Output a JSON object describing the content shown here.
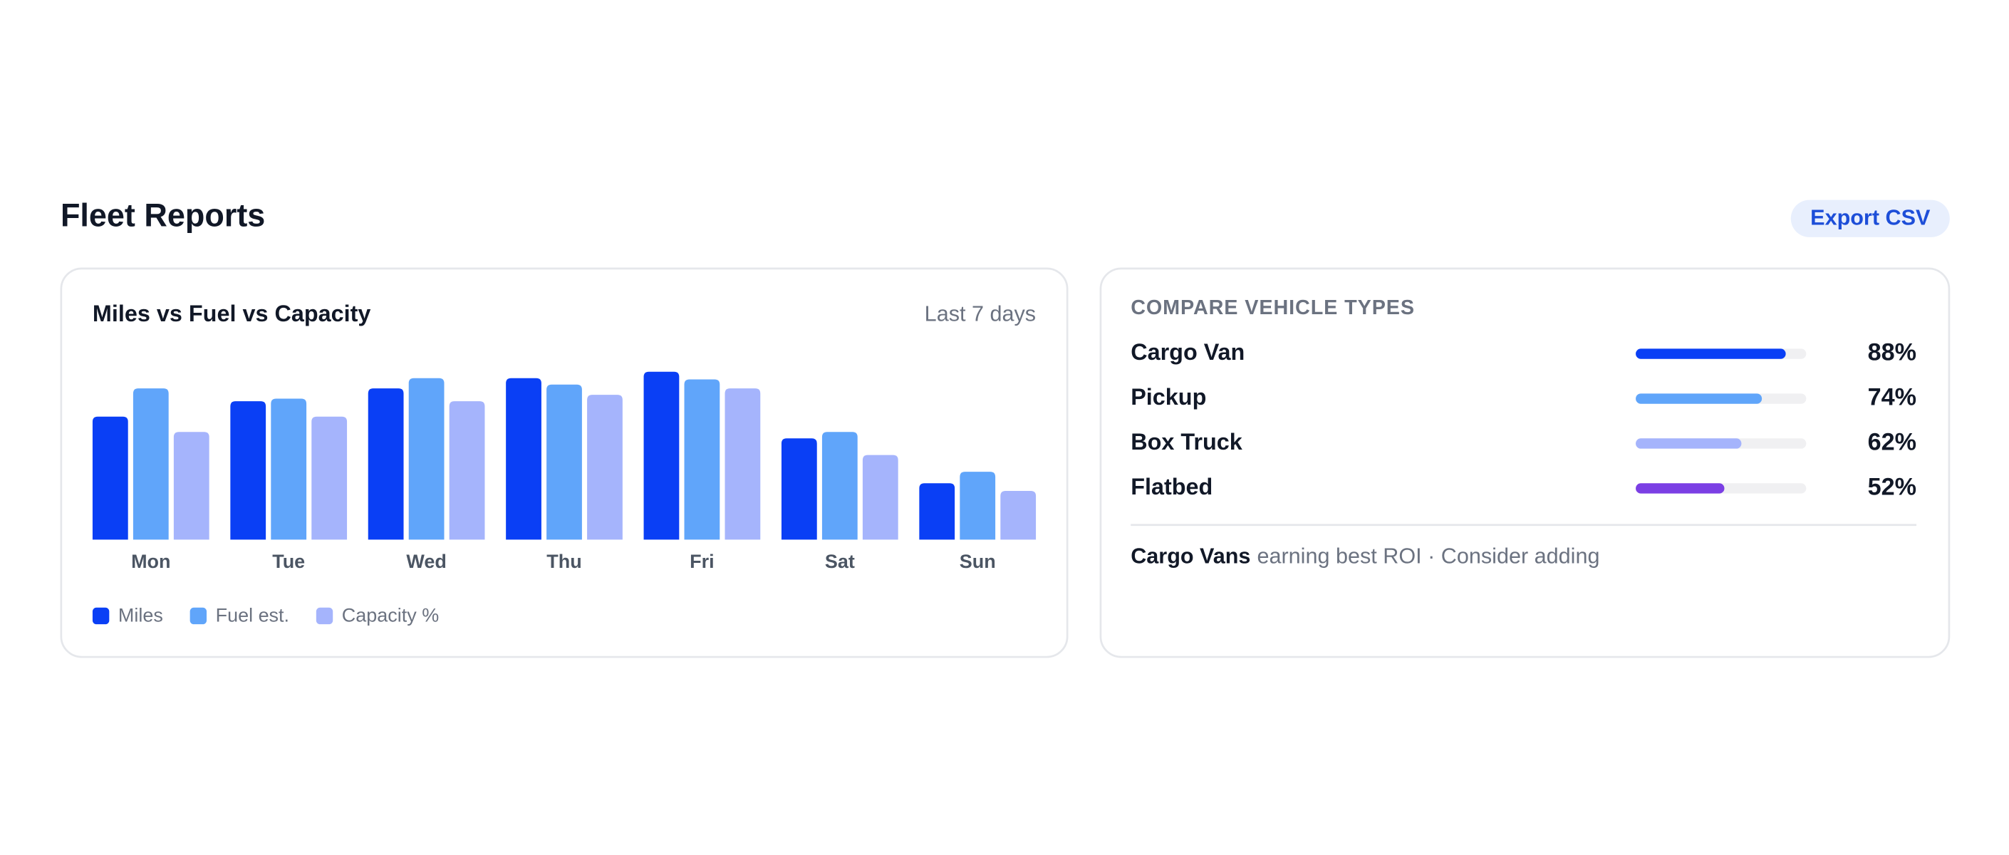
{
  "header": {
    "title": "Fleet Reports",
    "button": "Export CSV"
  },
  "chart_data": {
    "type": "bar",
    "title": "Miles vs Fuel vs Capacity",
    "subtitle": "Last 7 days",
    "categories": [
      "Mon",
      "Tue",
      "Wed",
      "Thu",
      "Fri",
      "Sat",
      "Sun"
    ],
    "series": [
      {
        "name": "Miles",
        "color": "#0a3ff5",
        "values": [
          96,
          108,
          118,
          126,
          131,
          79,
          44
        ]
      },
      {
        "name": "Fuel est.",
        "color": "#60a5fa",
        "values": [
          118,
          110,
          126,
          121,
          125,
          84,
          53
        ]
      },
      {
        "name": "Capacity %",
        "color": "#a5b4fc",
        "values": [
          84,
          96,
          108,
          113,
          118,
          66,
          38
        ]
      }
    ],
    "ylim": [
      0,
      140
    ]
  },
  "comparison": {
    "title": "COMPARE VEHICLE TYPES",
    "categories": [
      "Cargo Van",
      "Pickup",
      "Box Truck",
      "Flatbed"
    ],
    "values": [
      88,
      74,
      62,
      52
    ],
    "value_labels": [
      "88%",
      "74%",
      "62%",
      "52%"
    ],
    "colors": [
      "#0a3ff5",
      "#60a5fa",
      "#a5b4fc",
      "#7b3fe4"
    ],
    "xlim": [
      0,
      100
    ],
    "note": {
      "bold": "Cargo Vans",
      "text": "earning best ROI · Consider adding"
    }
  }
}
